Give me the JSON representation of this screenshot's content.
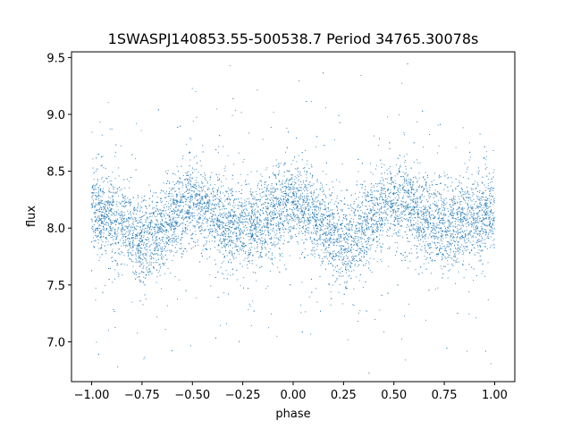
{
  "chart_data": {
    "type": "scatter",
    "title": "1SWASPJ140853.55-500538.7 Period 34765.30078s",
    "xlabel": "phase",
    "ylabel": "flux",
    "xlim": [
      -1.1,
      1.1
    ],
    "ylim": [
      6.65,
      9.55
    ],
    "xticks": [
      -1.0,
      -0.75,
      -0.5,
      -0.25,
      0.0,
      0.25,
      0.5,
      0.75,
      1.0
    ],
    "xtick_labels": [
      "−1.00",
      "−0.75",
      "−0.50",
      "−0.25",
      "0.00",
      "0.25",
      "0.50",
      "0.75",
      "1.00"
    ],
    "yticks": [
      7.0,
      7.5,
      8.0,
      8.5,
      9.0,
      9.5
    ],
    "ytick_labels": [
      "7.0",
      "7.5",
      "8.0",
      "8.5",
      "9.0",
      "9.5"
    ],
    "grid": false,
    "marker_color": "#1f77b4",
    "series": [
      {
        "name": "",
        "x_range": [
          -1.0,
          1.0
        ],
        "n_points": 9000,
        "phase_curve": {
          "x": [
            -1.0,
            -0.9,
            -0.75,
            -0.5,
            -0.25,
            0.0,
            0.25,
            0.5,
            0.75,
            0.9,
            1.0
          ],
          "y": [
            8.15,
            8.1,
            7.9,
            8.2,
            8.0,
            8.2,
            7.9,
            8.2,
            8.0,
            8.1,
            8.15
          ]
        },
        "scatter_std": 0.18
      }
    ]
  }
}
